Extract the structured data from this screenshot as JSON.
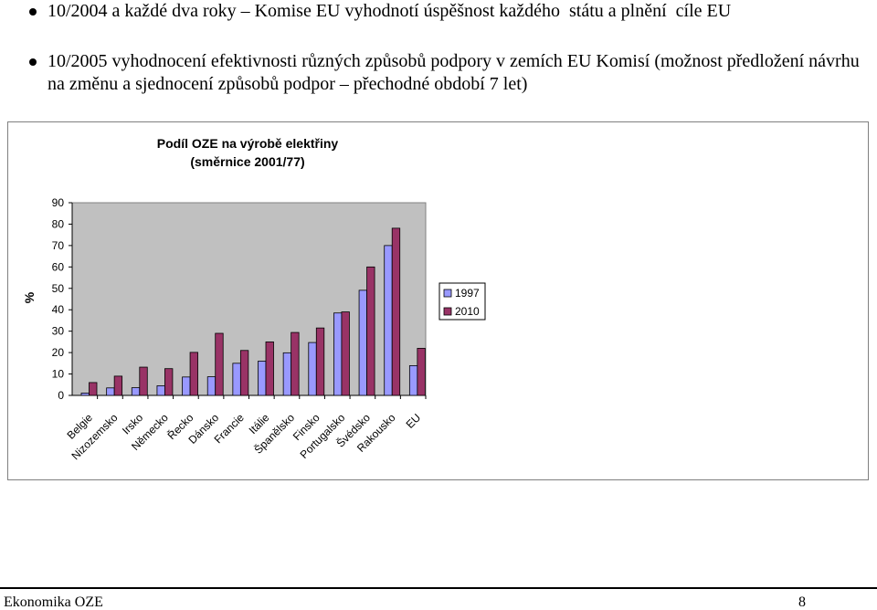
{
  "bullets": [
    {
      "text": "10/2004 a každé dva roky – Komise EU vyhodnotí úspěšnost každého  státu a plnění  cíle EU"
    },
    {
      "text": "10/2005 vyhodnocení efektivnosti různých způsobů podpory v zemích EU Komisí (možnost předložení návrhu na změnu a sjednocení způsobů podpor – přechodné období 7 let)"
    }
  ],
  "chart_data": {
    "type": "bar",
    "title": "Podíl OZE na výrobě elektřiny",
    "subtitle": "(směrnice 2001/77)",
    "xlabel": "",
    "ylabel": "%",
    "ylim": [
      0,
      90
    ],
    "yticks": [
      "0",
      "10",
      "20",
      "30",
      "40",
      "50",
      "60",
      "70",
      "80",
      "90"
    ],
    "grid": false,
    "legend_position": "right",
    "categories": [
      "Belgie",
      "Nizozemsko",
      "Irsko",
      "Německo",
      "Řecko",
      "Dánsko",
      "Francie",
      "Itálie",
      "Španělsko",
      "Finsko",
      "Portugalsko",
      "Švédsko",
      "Rakousko",
      "EU"
    ],
    "series": [
      {
        "name": "1997",
        "color": "#9999ff",
        "values": [
          1.1,
          3.5,
          3.6,
          4.5,
          8.6,
          8.7,
          15,
          16,
          19.9,
          24.7,
          38.5,
          49.1,
          70,
          13.9
        ]
      },
      {
        "name": "2010",
        "color": "#993366",
        "values": [
          6,
          9,
          13.2,
          12.5,
          20.1,
          29,
          21,
          25,
          29.4,
          31.5,
          39,
          60,
          78.1,
          22
        ]
      }
    ],
    "plot_background": "#c0c0c0"
  },
  "footer": {
    "left": "Ekonomika OZE",
    "right": "8"
  }
}
